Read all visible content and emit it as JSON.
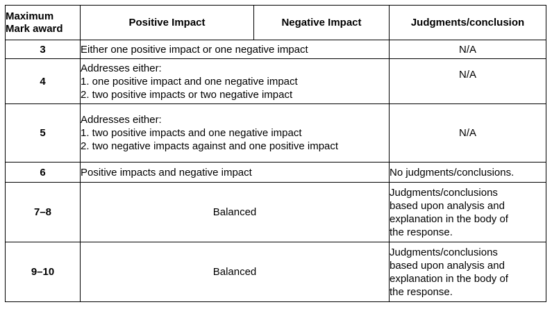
{
  "headers": {
    "mark": [
      "Maximum",
      "Mark award"
    ],
    "positive": "Positive Impact",
    "negative": "Negative Impact",
    "judgments": "Judgments/conclusion"
  },
  "rows": [
    {
      "mark": "3",
      "description": "Either one positive impact or one negative impact",
      "judgment": "N/A"
    },
    {
      "mark": "4",
      "intro": "Addresses either:",
      "items": [
        "1.  one positive impact and one negative impact",
        "2.   two positive impacts or two negative impact"
      ],
      "judgment": "N/A"
    },
    {
      "mark": "5",
      "intro": "Addresses either:",
      "items": [
        "1.  two positive impacts and one negative impact",
        "2.  two negative impacts against and one positive impact"
      ],
      "judgment": "N/A"
    },
    {
      "mark": "6",
      "description": "Positive impacts and negative impact",
      "judgment": "No judgments/conclusions."
    },
    {
      "mark": "7–8",
      "description": "Balanced",
      "judgment_lines": [
        "Judgments/conclusions",
        "based upon analysis and",
        "explanation in the body of",
        "the response."
      ]
    },
    {
      "mark": "9–10",
      "description": "Balanced",
      "judgment_lines": [
        "Judgments/conclusions",
        "based upon analysis and",
        "explanation in the body of",
        "the response."
      ]
    }
  ]
}
